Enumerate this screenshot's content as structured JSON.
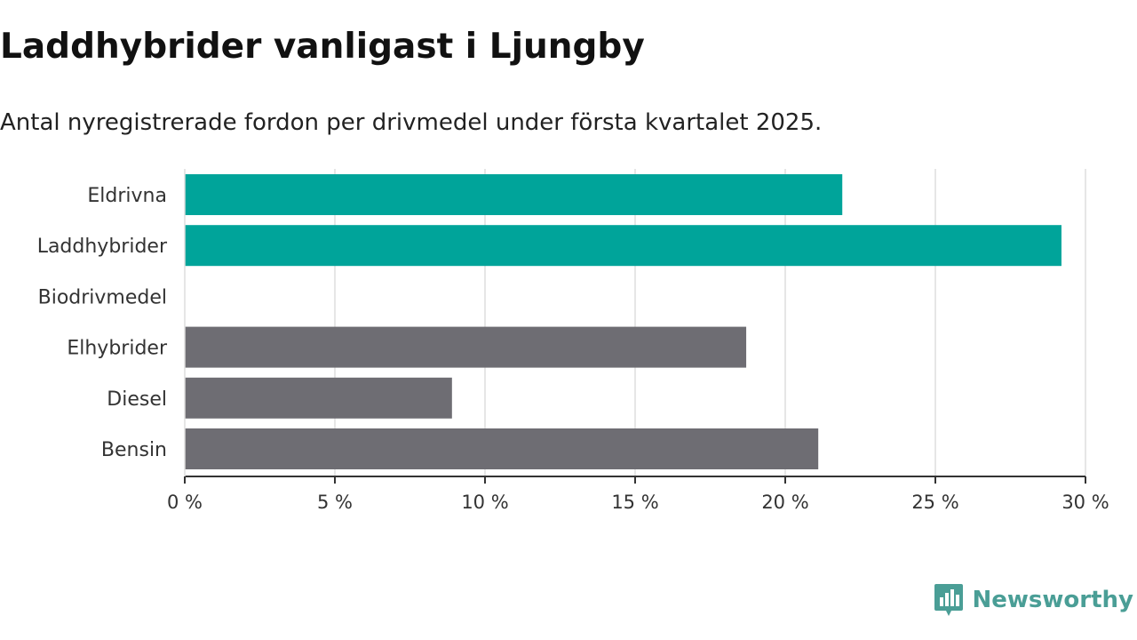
{
  "title": "Laddhybrider vanligast i Ljungby",
  "subtitle": "Antal nyregistrerade fordon per drivmedel under första kvartalet 2025.",
  "brand": {
    "name": "Newsworthy",
    "icon": "newsworthy-logo-icon",
    "color": "#4a9e96"
  },
  "colors": {
    "highlight": "#00a49a",
    "other": "#6e6d73",
    "grid": "#dddddd",
    "axis": "#333333"
  },
  "chart_data": {
    "type": "bar",
    "orientation": "horizontal",
    "title": "Laddhybrider vanligast i Ljungby",
    "subtitle": "Antal nyregistrerade fordon per drivmedel under första kvartalet 2025.",
    "categories": [
      "Eldrivna",
      "Laddhybrider",
      "Biodrivmedel",
      "Elhybrider",
      "Diesel",
      "Bensin"
    ],
    "values": [
      21.9,
      29.2,
      0,
      18.7,
      8.9,
      21.1
    ],
    "bar_colors": [
      "#00a49a",
      "#00a49a",
      "#6e6d73",
      "#6e6d73",
      "#6e6d73",
      "#6e6d73"
    ],
    "xlim": [
      0,
      30
    ],
    "xticks": [
      0,
      5,
      10,
      15,
      20,
      25,
      30
    ],
    "xtick_labels": [
      "0 %",
      "5 %",
      "10 %",
      "15 %",
      "20 %",
      "25 %",
      "30 %"
    ],
    "grid": true,
    "legend": "none"
  }
}
